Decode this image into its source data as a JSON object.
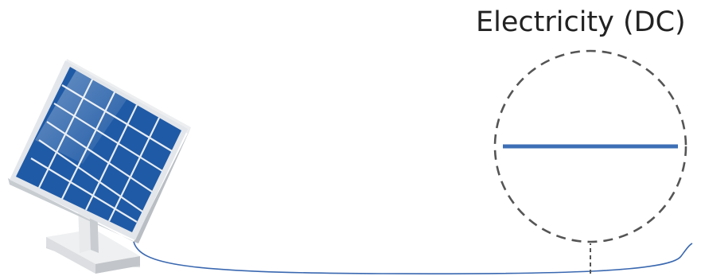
{
  "diagram": {
    "title": "Electricity (DC)",
    "components": [
      "solar-panel",
      "wire",
      "dc-signal-magnifier"
    ],
    "colors": {
      "panel_cell": "#1f5aa6",
      "panel_frame": "#d9dde2",
      "panel_stand": "#e4e6e8",
      "wire": "#3a68b0",
      "dc_line": "#3d6fb6",
      "magnifier_border": "#555555"
    }
  }
}
